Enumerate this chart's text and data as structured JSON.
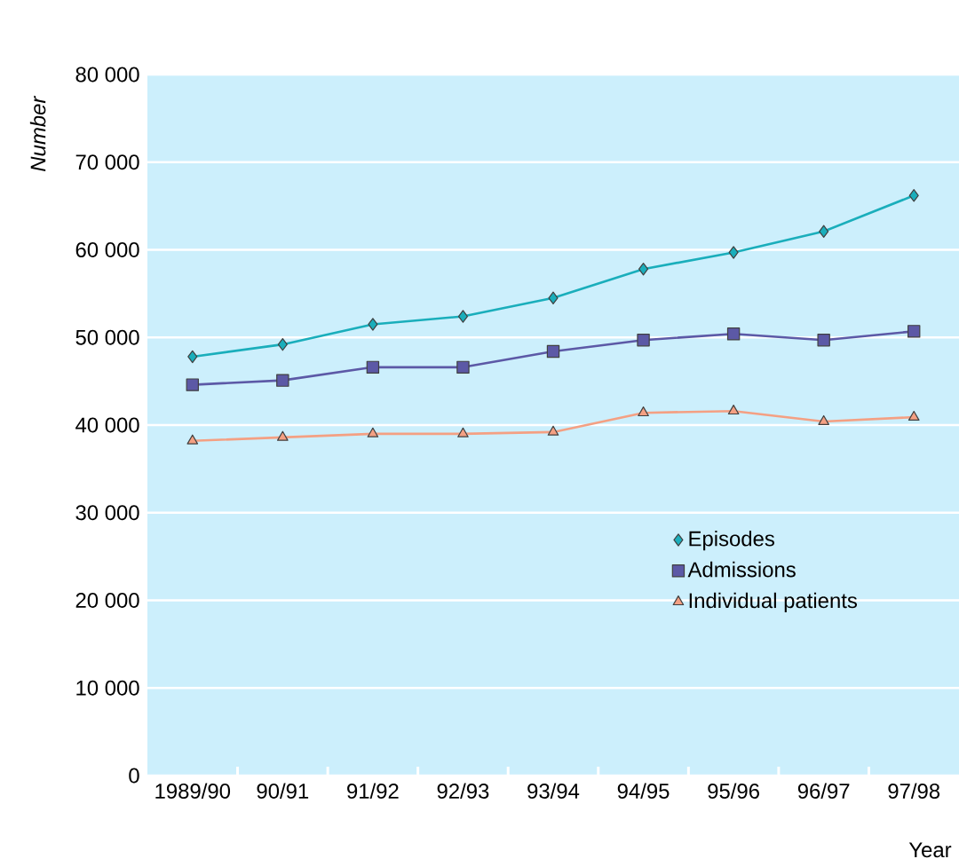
{
  "chart_data": {
    "type": "line",
    "xlabel": "Year",
    "ylabel": "Number",
    "categories": [
      "1989/90",
      "90/91",
      "91/92",
      "92/93",
      "93/94",
      "94/95",
      "95/96",
      "96/97",
      "97/98"
    ],
    "series": [
      {
        "name": "Episodes",
        "color": "#1aaebb",
        "marker": "diamond",
        "values": [
          47800,
          49200,
          51500,
          52400,
          54500,
          57800,
          59700,
          62100,
          66200
        ]
      },
      {
        "name": "Admissions",
        "color": "#5c59a6",
        "marker": "square",
        "values": [
          44600,
          45100,
          46600,
          46600,
          48400,
          49700,
          50400,
          49700,
          50700
        ]
      },
      {
        "name": "Individual patients",
        "color": "#f4a083",
        "marker": "triangle",
        "values": [
          38200,
          38600,
          39000,
          39000,
          39200,
          41400,
          41600,
          40400,
          40900
        ]
      }
    ],
    "ylim": [
      0,
      80000
    ],
    "yticks": [
      0,
      {
        "value": 10000,
        "label": "10 000"
      },
      {
        "value": 20000,
        "label": "20 000"
      },
      {
        "value": 30000,
        "label": "30 000"
      },
      {
        "value": 40000,
        "label": "40 000"
      },
      {
        "value": 50000,
        "label": "50 000"
      },
      {
        "value": 60000,
        "label": "60 000"
      },
      {
        "value": 70000,
        "label": "70 000"
      },
      {
        "value": 80000,
        "label": "80 000"
      }
    ],
    "grid": "y",
    "legend": "bottom right",
    "line_style": "solid"
  }
}
